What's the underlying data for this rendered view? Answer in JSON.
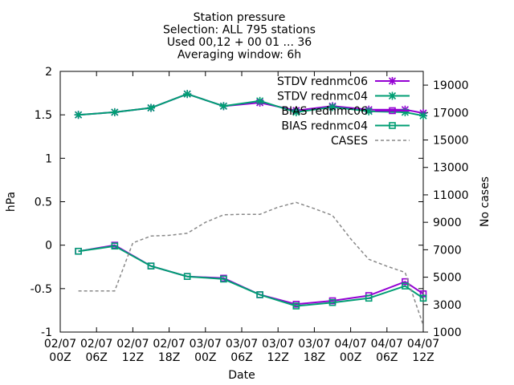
{
  "chart_data": {
    "type": "line",
    "title_lines": [
      "Station pressure",
      "Selection: ALL     795 stations",
      "Used 00,12 + 00 01 ... 36",
      "Averaging window:  6h"
    ],
    "xlabel": "Date",
    "ylabel": "hPa",
    "y2label": "No cases",
    "legend_position": "top-right",
    "grid": false,
    "xlim": [
      0,
      30
    ],
    "ylim": [
      -1,
      2
    ],
    "y2lim": [
      1000,
      20000
    ],
    "x_ticks": [
      {
        "x": 0,
        "line1": "02/07",
        "line2": "00Z"
      },
      {
        "x": 3,
        "line1": "02/07",
        "line2": "06Z"
      },
      {
        "x": 6,
        "line1": "02/07",
        "line2": "12Z"
      },
      {
        "x": 9,
        "line1": "02/07",
        "line2": "18Z"
      },
      {
        "x": 12,
        "line1": "03/07",
        "line2": "00Z"
      },
      {
        "x": 15,
        "line1": "03/07",
        "line2": "06Z"
      },
      {
        "x": 18,
        "line1": "03/07",
        "line2": "12Z"
      },
      {
        "x": 21,
        "line1": "03/07",
        "line2": "18Z"
      },
      {
        "x": 24,
        "line1": "04/07",
        "line2": "00Z"
      },
      {
        "x": 27,
        "line1": "04/07",
        "line2": "06Z"
      },
      {
        "x": 30,
        "line1": "04/07",
        "line2": "12Z"
      }
    ],
    "y_ticks": [
      {
        "v": 2,
        "label": "2"
      },
      {
        "v": 1.5,
        "label": "1.5"
      },
      {
        "v": 1,
        "label": "1"
      },
      {
        "v": 0.5,
        "label": "0.5"
      },
      {
        "v": 0,
        "label": "0"
      },
      {
        "v": -0.5,
        "label": "-0.5"
      },
      {
        "v": -1,
        "label": "-1"
      }
    ],
    "y2_ticks": [
      {
        "v": 19000,
        "label": "19000"
      },
      {
        "v": 17000,
        "label": "17000"
      },
      {
        "v": 15000,
        "label": "15000"
      },
      {
        "v": 13000,
        "label": "13000"
      },
      {
        "v": 11000,
        "label": "11000"
      },
      {
        "v": 9000,
        "label": "9000"
      },
      {
        "v": 7000,
        "label": "7000"
      },
      {
        "v": 5000,
        "label": "5000"
      },
      {
        "v": 3000,
        "label": "3000"
      },
      {
        "v": 1000,
        "label": "1000"
      }
    ],
    "series": [
      {
        "name": "STDV rednmc06",
        "color": "#9400d3",
        "marker": "star",
        "axis": "y",
        "x": [
          1.5,
          4.5,
          7.5,
          10.5,
          13.5,
          16.5,
          19.5,
          22.5,
          25.5,
          28.5,
          30
        ],
        "values": [
          1.5,
          1.53,
          1.58,
          1.74,
          1.6,
          1.64,
          1.55,
          1.6,
          1.56,
          1.56,
          1.52
        ]
      },
      {
        "name": "STDV rednmc04",
        "color": "#009e73",
        "marker": "star",
        "axis": "y",
        "x": [
          1.5,
          4.5,
          7.5,
          10.5,
          13.5,
          16.5,
          19.5,
          22.5,
          25.5,
          28.5,
          30
        ],
        "values": [
          1.5,
          1.53,
          1.58,
          1.74,
          1.6,
          1.66,
          1.53,
          1.59,
          1.54,
          1.53,
          1.49
        ]
      },
      {
        "name": "BIAS rednmc06",
        "color": "#9400d3",
        "marker": "square",
        "axis": "y",
        "x": [
          1.5,
          4.5,
          7.5,
          10.5,
          13.5,
          16.5,
          19.5,
          22.5,
          25.5,
          28.5,
          30
        ],
        "values": [
          -0.07,
          0.0,
          -0.24,
          -0.36,
          -0.38,
          -0.57,
          -0.68,
          -0.64,
          -0.58,
          -0.42,
          -0.56
        ]
      },
      {
        "name": "BIAS rednmc04",
        "color": "#009e73",
        "marker": "square",
        "axis": "y",
        "x": [
          1.5,
          4.5,
          7.5,
          10.5,
          13.5,
          16.5,
          19.5,
          22.5,
          25.5,
          28.5,
          30
        ],
        "values": [
          -0.07,
          -0.01,
          -0.24,
          -0.36,
          -0.39,
          -0.57,
          -0.7,
          -0.66,
          -0.61,
          -0.47,
          -0.61
        ]
      },
      {
        "name": "CASES",
        "color": "#888888",
        "marker": "none",
        "dashed": true,
        "axis": "y2",
        "x": [
          1.5,
          3,
          4.5,
          6,
          7.5,
          9,
          10.5,
          12,
          13.5,
          15,
          16.5,
          18,
          19.5,
          21,
          22.5,
          24,
          25.5,
          27,
          28.5,
          30
        ],
        "values": [
          4000,
          4000,
          4000,
          7500,
          8000,
          8050,
          8200,
          9000,
          9550,
          9580,
          9580,
          10100,
          10450,
          10000,
          9500,
          7800,
          6300,
          5800,
          5350,
          1500
        ]
      }
    ]
  }
}
